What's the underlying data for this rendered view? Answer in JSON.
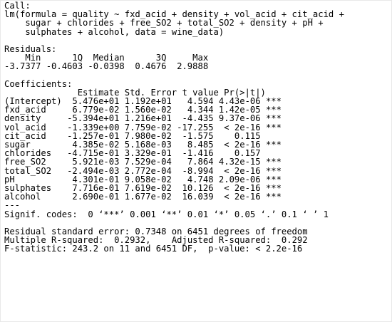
{
  "colors": {
    "background": "#ffffff",
    "text": "#000000"
  },
  "output": {
    "call_header": "Call:",
    "call_lines": [
      "lm(formula = quality ~ fxd_acid + density + vol_acid + cit_acid +",
      "    sugar + chlorides + free_SO2 + total_SO2 + density + pH +",
      "    sulphates + alcohol, data = wine_data)"
    ],
    "residuals_header": "Residuals:",
    "residuals_labels": "    Min      1Q  Median      3Q     Max ",
    "residuals_values": "-3.7377 -0.4603 -0.0398  0.4676  2.9888 ",
    "coefficients_header": "Coefficients:",
    "coef_column_header": "              Estimate Std. Error t value Pr(>|t|)    ",
    "coef_rows": [
      {
        "term": "(Intercept)",
        "estimate": " 5.476e+01",
        "std_error": "1.192e+01",
        "t_value": "  4.594",
        "p_value": "4.43e-06",
        "signif": "***"
      },
      {
        "term": "fxd_acid   ",
        "estimate": " 6.779e-02",
        "std_error": "1.560e-02",
        "t_value": "  4.344",
        "p_value": "1.42e-05",
        "signif": "***"
      },
      {
        "term": "density    ",
        "estimate": "-5.394e+01",
        "std_error": "1.216e+01",
        "t_value": " -4.435",
        "p_value": "9.37e-06",
        "signif": "***"
      },
      {
        "term": "vol_acid   ",
        "estimate": "-1.339e+00",
        "std_error": "7.759e-02",
        "t_value": "-17.255",
        "p_value": " < 2e-16",
        "signif": "***"
      },
      {
        "term": "cit_acid   ",
        "estimate": "-1.257e-01",
        "std_error": "7.980e-02",
        "t_value": " -1.575",
        "p_value": "   0.115",
        "signif": "   "
      },
      {
        "term": "sugar      ",
        "estimate": " 4.385e-02",
        "std_error": "5.168e-03",
        "t_value": "  8.485",
        "p_value": " < 2e-16",
        "signif": "***"
      },
      {
        "term": "chlorides  ",
        "estimate": "-4.715e-01",
        "std_error": "3.329e-01",
        "t_value": " -1.416",
        "p_value": "   0.157",
        "signif": "   "
      },
      {
        "term": "free_SO2   ",
        "estimate": " 5.921e-03",
        "std_error": "7.529e-04",
        "t_value": "  7.864",
        "p_value": "4.32e-15",
        "signif": "***"
      },
      {
        "term": "total_SO2  ",
        "estimate": "-2.494e-03",
        "std_error": "2.772e-04",
        "t_value": " -8.994",
        "p_value": " < 2e-16",
        "signif": "***"
      },
      {
        "term": "pH         ",
        "estimate": " 4.301e-01",
        "std_error": "9.058e-02",
        "t_value": "  4.748",
        "p_value": "2.09e-06",
        "signif": "***"
      },
      {
        "term": "sulphates  ",
        "estimate": " 7.716e-01",
        "std_error": "7.619e-02",
        "t_value": " 10.126",
        "p_value": " < 2e-16",
        "signif": "***"
      },
      {
        "term": "alcohol    ",
        "estimate": " 2.690e-01",
        "std_error": "1.677e-02",
        "t_value": " 16.039",
        "p_value": " < 2e-16",
        "signif": "***"
      }
    ],
    "separator": "---",
    "signif_codes": "Signif. codes:  0 ‘***’ 0.001 ‘**’ 0.01 ‘*’ 0.05 ‘.’ 0.1 ‘ ’ 1",
    "residual_se": "Residual standard error: 0.7348 on 6451 degrees of freedom",
    "r_squared": "Multiple R-squared:  0.2932,\tAdjusted R-squared:  0.292 ",
    "f_statistic": "F-statistic: 243.2 on 11 and 6451 DF,  p-value: < 2.2e-16"
  }
}
